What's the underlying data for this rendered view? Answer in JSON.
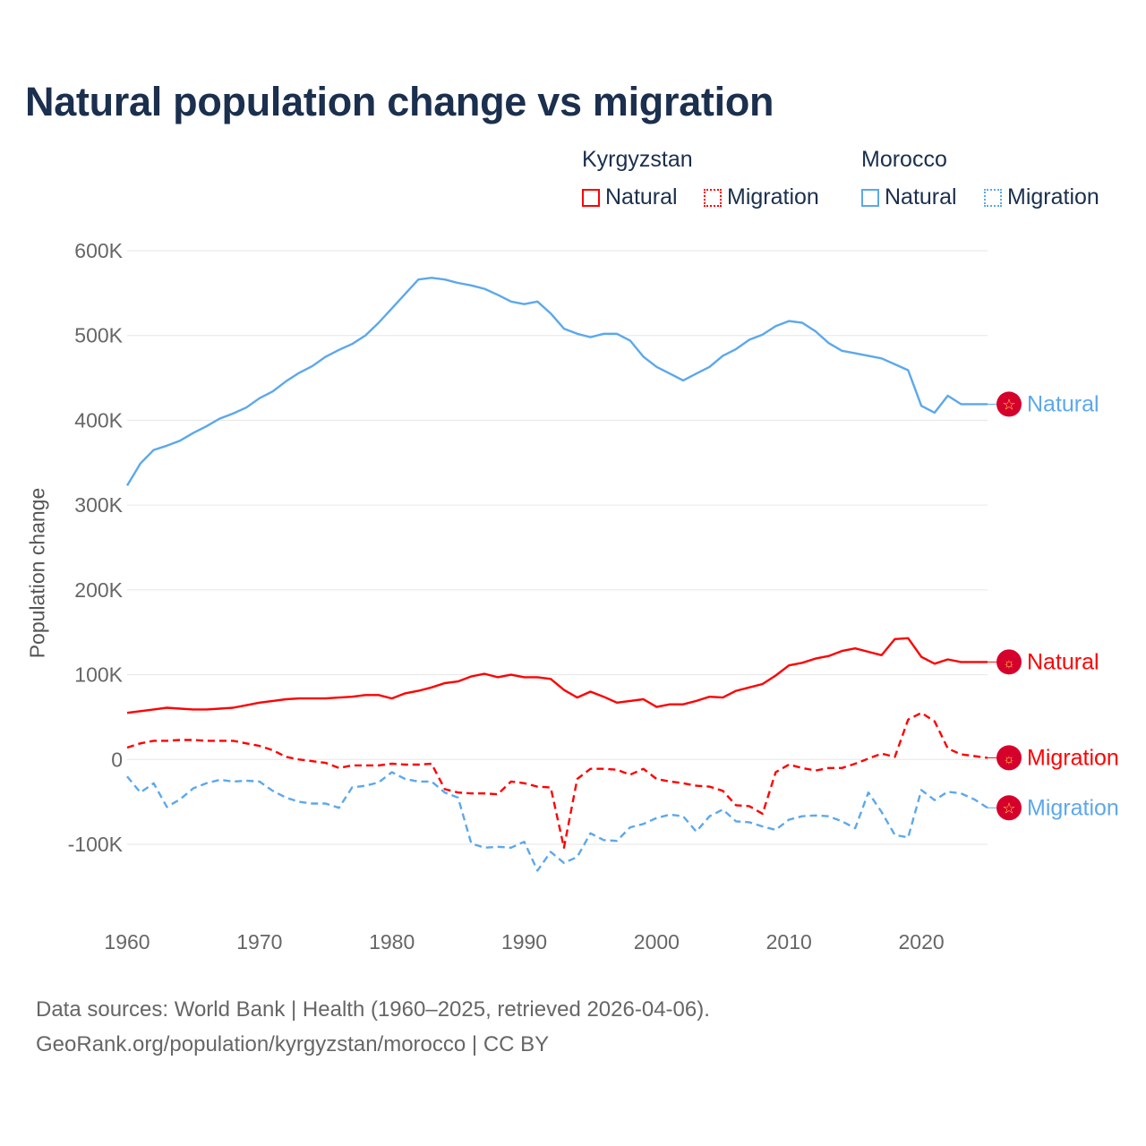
{
  "title": "Natural population change vs migration",
  "legend": {
    "groups": [
      {
        "name": "Kyrgyzstan",
        "items": [
          "Natural",
          "Migration"
        ],
        "color": "#ff0000"
      },
      {
        "name": "Morocco",
        "items": [
          "Natural",
          "Migration"
        ],
        "color": "#5ca8ec"
      }
    ]
  },
  "source": {
    "line1": "Data sources: World Bank | Health (1960–2025, retrieved 2026-04-06).",
    "line2": "GeoRank.org/population/kyrgyzstan/morocco | CC BY"
  },
  "chart_data": {
    "type": "line",
    "title": "Natural population change vs migration",
    "xlabel": "",
    "ylabel": "Population change",
    "xlim": [
      1960,
      2025
    ],
    "ylim": [
      -100000,
      600000
    ],
    "x_ticks": [
      1960,
      1970,
      1980,
      1990,
      2000,
      2010,
      2020
    ],
    "x_tick_labels": [
      "1960",
      "1970",
      "1980",
      "1990",
      "2000",
      "2010",
      "2020"
    ],
    "y_ticks": [
      -100000,
      0,
      100000,
      200000,
      300000,
      400000,
      500000,
      600000
    ],
    "y_tick_labels": [
      "-100K",
      "0",
      "100K",
      "200K",
      "300K",
      "400K",
      "500K",
      "600K"
    ],
    "grid": true,
    "legend_position": "top-right",
    "x_start": 1960,
    "unit": "thousands",
    "series": [
      {
        "name": "Morocco Natural",
        "end_label": "Natural",
        "country": "Morocco",
        "color": "#5ca8ec",
        "dash": false,
        "flag": "morocco-flag-icon",
        "values": [
          323,
          349,
          365,
          370,
          376,
          385,
          393,
          402,
          408,
          415,
          426,
          434,
          446,
          456,
          464,
          475,
          483,
          490,
          500,
          515,
          532,
          549,
          566,
          568,
          566,
          562,
          559,
          555,
          548,
          540,
          537,
          540,
          526,
          508,
          502,
          498,
          502,
          502,
          494,
          475,
          463,
          455,
          447,
          455,
          463,
          476,
          484,
          495,
          501,
          511,
          517,
          515,
          505,
          491,
          482,
          479,
          476,
          473,
          466,
          459,
          417,
          409,
          429,
          419,
          419,
          419
        ]
      },
      {
        "name": "Kyrgyzstan Natural",
        "end_label": "Natural",
        "country": "Kyrgyzstan",
        "color": "#ff0000",
        "dash": false,
        "flag": "kyrgyzstan-flag-icon",
        "values": [
          55,
          57,
          59,
          61,
          60,
          59,
          59,
          60,
          61,
          64,
          67,
          69,
          71,
          72,
          72,
          72,
          73,
          74,
          76,
          76,
          72,
          78,
          81,
          85,
          90,
          92,
          98,
          101,
          97,
          100,
          97,
          97,
          95,
          82,
          73,
          80,
          74,
          67,
          69,
          71,
          62,
          65,
          65,
          69,
          74,
          73,
          81,
          85,
          89,
          99,
          111,
          114,
          119,
          122,
          128,
          131,
          127,
          123,
          142,
          143,
          121,
          113,
          118,
          115,
          115,
          115
        ]
      },
      {
        "name": "Kyrgyzstan Migration",
        "end_label": "Migration",
        "country": "Kyrgyzstan",
        "color": "#ff0000",
        "dash": true,
        "flag": "kyrgyzstan-flag-icon",
        "values": [
          14,
          19,
          22,
          22,
          23,
          23,
          22,
          22,
          22,
          19,
          16,
          11,
          3,
          0,
          -2,
          -4,
          -10,
          -7,
          -7,
          -7,
          -5,
          -6,
          -6,
          -5,
          -35,
          -39,
          -40,
          -40,
          -41,
          -26,
          -28,
          -32,
          -33,
          -104,
          -23,
          -11,
          -11,
          -12,
          -18,
          -11,
          -23,
          -26,
          -28,
          -31,
          -32,
          -37,
          -54,
          -55,
          -64,
          -15,
          -6,
          -10,
          -13,
          -10,
          -10,
          -5,
          1,
          7,
          3,
          47,
          55,
          45,
          13,
          6,
          4,
          2
        ]
      },
      {
        "name": "Morocco Migration",
        "end_label": "Migration",
        "country": "Morocco",
        "color": "#5ca8ec",
        "dash": true,
        "flag": "morocco-flag-icon",
        "values": [
          -20,
          -39,
          -28,
          -56,
          -47,
          -34,
          -28,
          -24,
          -26,
          -25,
          -26,
          -37,
          -45,
          -50,
          -52,
          -52,
          -57,
          -33,
          -31,
          -27,
          -15,
          -23,
          -26,
          -26,
          -39,
          -45,
          -99,
          -104,
          -103,
          -104,
          -97,
          -131,
          -109,
          -122,
          -115,
          -87,
          -95,
          -96,
          -80,
          -76,
          -69,
          -65,
          -67,
          -85,
          -67,
          -59,
          -73,
          -74,
          -79,
          -83,
          -71,
          -67,
          -66,
          -67,
          -73,
          -81,
          -39,
          -62,
          -89,
          -92,
          -36,
          -48,
          -38,
          -40,
          -47,
          -57
        ]
      }
    ]
  }
}
